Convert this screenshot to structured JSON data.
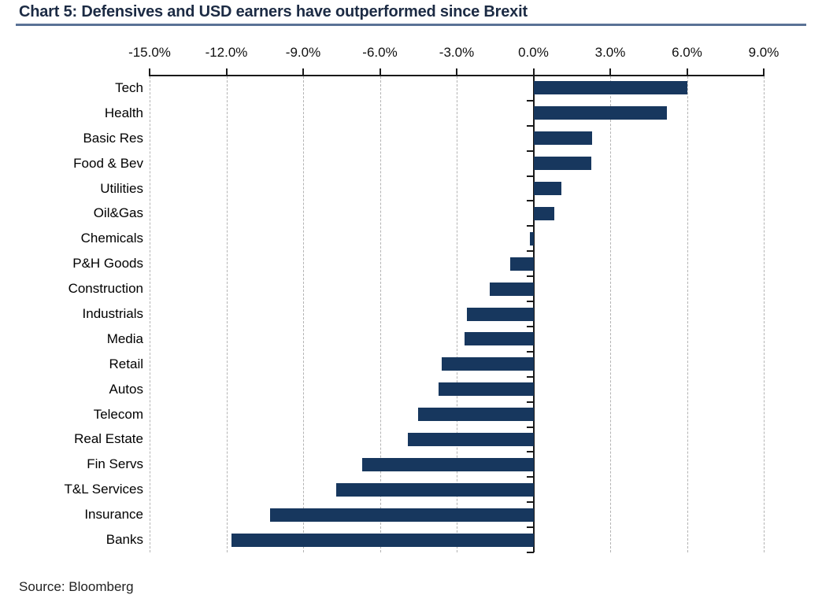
{
  "title": "Chart 5: Defensives and USD earners have outperformed since Brexit",
  "source": "Source: Bloomberg",
  "colors": {
    "bar": "#17375E",
    "title_text": "#1c2b44",
    "title_rule": "#5a7296",
    "axis": "#1a1a1a",
    "gridline": "#b3b3b3"
  },
  "chart_data": {
    "type": "bar",
    "orientation": "horizontal",
    "title": "Chart 5: Defensives and USD earners have outperformed since Brexit",
    "xlabel": "",
    "ylabel": "",
    "xlim": [
      -15,
      9
    ],
    "x_ticks": [
      -15,
      -12,
      -9,
      -6,
      -3,
      0,
      3,
      6,
      9
    ],
    "x_tick_labels": [
      "-15.0%",
      "-12.0%",
      "-9.0%",
      "-6.0%",
      "-3.0%",
      "0.0%",
      "3.0%",
      "6.0%",
      "9.0%"
    ],
    "grid": "vertical-dashed",
    "legend": "none",
    "unit": "percent",
    "categories": [
      "Tech",
      "Health",
      "Basic Res",
      "Food & Bev",
      "Utilities",
      "Oil&Gas",
      "Chemicals",
      "P&H Goods",
      "Construction",
      "Industrials",
      "Media",
      "Retail",
      "Autos",
      "Telecom",
      "Real Estate",
      "Fin Servs",
      "T&L Services",
      "Insurance",
      "Banks"
    ],
    "values": [
      6.0,
      5.2,
      2.3,
      2.25,
      1.1,
      0.8,
      -0.15,
      -0.9,
      -1.7,
      -2.6,
      -2.7,
      -3.6,
      -3.7,
      -4.5,
      -4.9,
      -6.7,
      -7.7,
      -10.3,
      -11.8
    ],
    "source": "Source: Bloomberg"
  }
}
